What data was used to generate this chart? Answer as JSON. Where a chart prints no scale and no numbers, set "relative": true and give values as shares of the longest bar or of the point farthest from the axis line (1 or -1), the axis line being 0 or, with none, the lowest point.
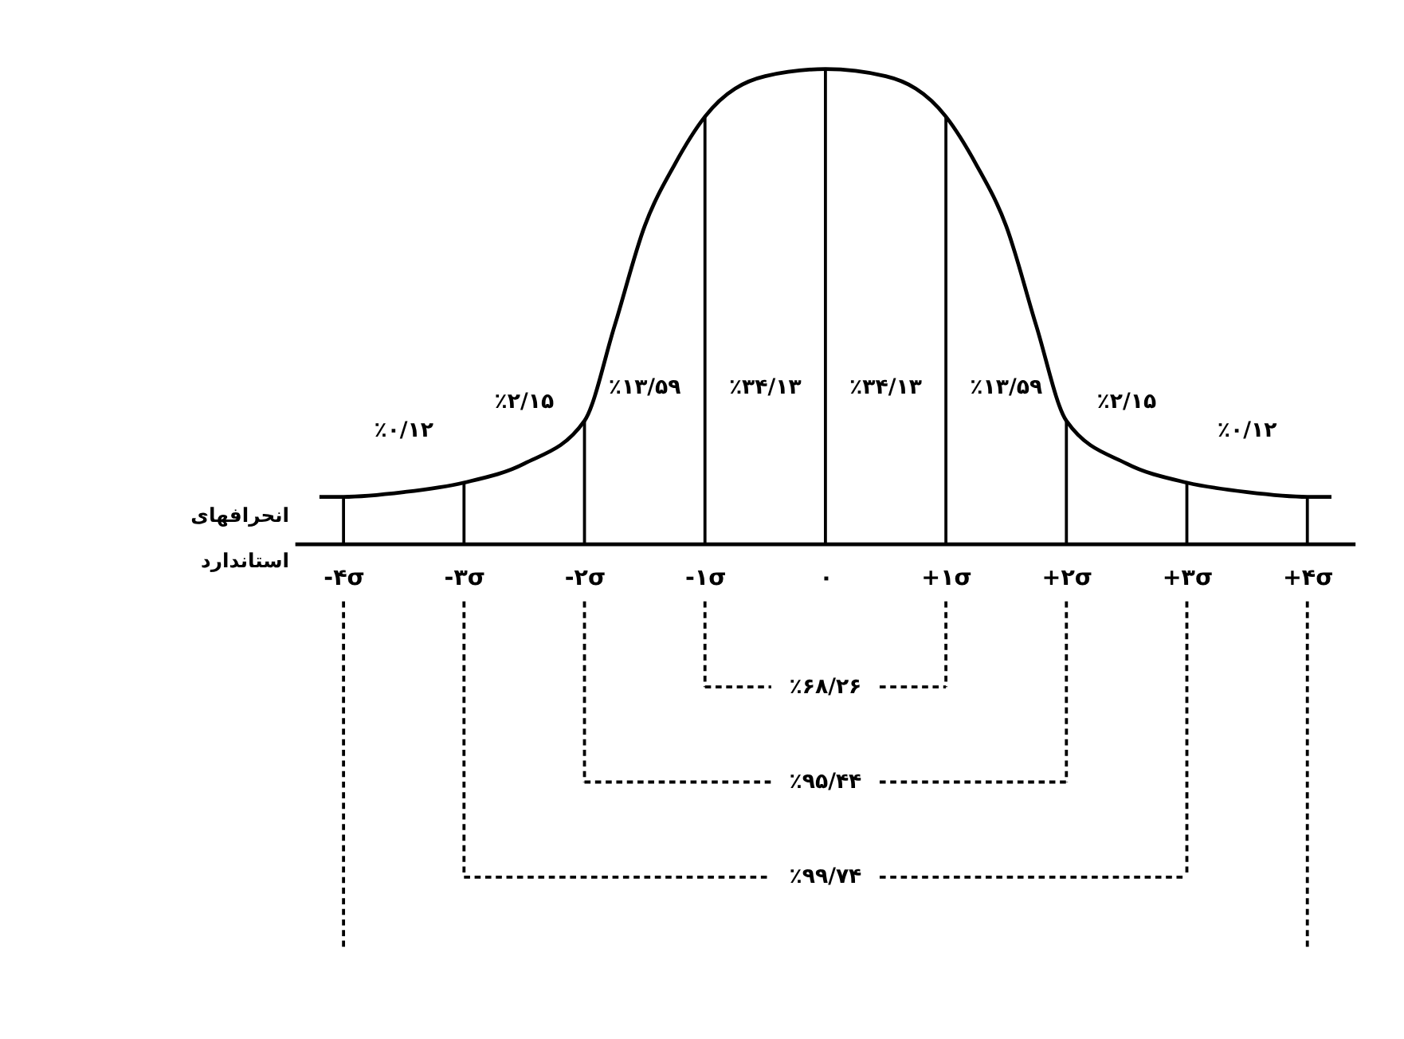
{
  "chart_data": {
    "type": "line",
    "relative": true,
    "xlabel": "انحرافهای استاندارد",
    "marker": "none",
    "line_style": "solid",
    "grid": false,
    "x": [
      -4.2,
      -4,
      -3.5,
      -3,
      -2.5,
      -2,
      -1.75,
      -1.5,
      -1.25,
      -1,
      -0.5,
      0,
      0.5,
      1,
      1.25,
      1.5,
      1.75,
      2,
      2.5,
      3,
      3.5,
      4,
      4.2
    ],
    "series": [
      {
        "color": "#000000",
        "values": [
          0.1,
          0.1,
          0.11,
          0.13,
          0.17,
          0.26,
          0.46,
          0.67,
          0.8,
          0.9,
          0.985,
          1,
          0.985,
          0.9,
          0.8,
          0.67,
          0.46,
          0.26,
          0.17,
          0.13,
          0.11,
          0.1,
          0.1
        ]
      }
    ],
    "xlim": [
      -4.4,
      4.4
    ],
    "xticks": [
      {
        "value": -4,
        "label": "-۴σ"
      },
      {
        "value": -3,
        "label": "-۳σ"
      },
      {
        "value": -2,
        "label": "-۲σ"
      },
      {
        "value": -1,
        "label": "-۱σ"
      },
      {
        "value": 0,
        "label": "۰"
      },
      {
        "value": 1,
        "label": "+۱σ"
      },
      {
        "value": 2,
        "label": "+۲σ"
      },
      {
        "value": 3,
        "label": "+۳σ"
      },
      {
        "value": 4,
        "label": "+۴σ"
      }
    ],
    "ref_lines": [
      {
        "axis": "x",
        "value": -4
      },
      {
        "axis": "x",
        "value": -3
      },
      {
        "axis": "x",
        "value": -2
      },
      {
        "axis": "x",
        "value": -1
      },
      {
        "axis": "x",
        "value": 0
      },
      {
        "axis": "x",
        "value": 1
      },
      {
        "axis": "x",
        "value": 2
      },
      {
        "axis": "x",
        "value": 3
      },
      {
        "axis": "x",
        "value": 4
      }
    ],
    "annotations": [
      "٪۰/۱۲",
      "٪۲/۱۵",
      "٪۱۳/۵۹",
      "٪۳۴/۱۳",
      "٪۳۴/۱۳",
      "٪۱۳/۵۹",
      "٪۲/۱۵",
      "٪۰/۱۲",
      "٪۶۸/۲۶",
      "٪۹۵/۴۴",
      "٪۹۹/۷۴"
    ]
  }
}
